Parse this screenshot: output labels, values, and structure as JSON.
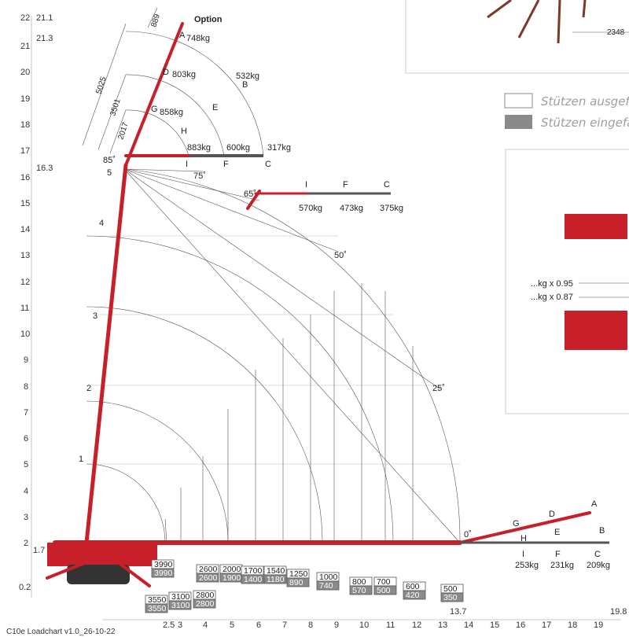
{
  "footer": {
    "caption": "C10e Loadchart v1.0_26-10-22"
  },
  "legend": {
    "extended": "Stützen ausgefa",
    "retracted": "Stützen eingefal"
  },
  "option_label": "Option",
  "y_axis": {
    "ticks": [
      "22",
      "21",
      "20",
      "19",
      "18",
      "17",
      "16",
      "15",
      "14",
      "13",
      "12",
      "11",
      "10",
      "9",
      "8",
      "7",
      "6",
      "5",
      "4",
      "3",
      "2"
    ],
    "extra": [
      "21.1",
      "21.3",
      "16.3",
      "1.7",
      "0.2"
    ]
  },
  "x_axis": {
    "ticks": [
      "2.5",
      "3",
      "4",
      "5",
      "6",
      "7",
      "8",
      "9",
      "10",
      "11",
      "12",
      "13",
      "14",
      "15",
      "16",
      "17",
      "18",
      "19"
    ],
    "extra": [
      "13.7",
      "19.8"
    ]
  },
  "section_marks": [
    "1",
    "2",
    "3",
    "4",
    "5"
  ],
  "angles": [
    "85˚",
    "75˚",
    "65˚",
    "50˚",
    "25˚",
    "0˚"
  ],
  "jib_dims": [
    "889",
    "5025",
    "3501",
    "2017"
  ],
  "top_jib": {
    "letters": [
      "A",
      "D",
      "G",
      "B",
      "E",
      "H",
      "I",
      "F",
      "C"
    ],
    "loads": [
      "748kg",
      "803kg",
      "858kg",
      "532kg",
      "883kg",
      "600kg",
      "317kg"
    ]
  },
  "mid_jib": {
    "letters": [
      "I",
      "F",
      "C"
    ],
    "loads": [
      "570kg",
      "473kg",
      "375kg"
    ]
  },
  "low_jib": {
    "letters": [
      "A",
      "D",
      "G",
      "B",
      "E",
      "H",
      "I",
      "F",
      "C"
    ],
    "loads": [
      "253kg",
      "231kg",
      "209kg"
    ]
  },
  "inset": {
    "dim": "2348",
    "factor1": "...kg x 0.95",
    "factor2": "...kg x 0.87"
  },
  "capacity_boxes": [
    {
      "top": "3990",
      "bottom": "3990"
    },
    {
      "top": "3550",
      "bottom": "3550"
    },
    {
      "top": "3100",
      "bottom": "3100"
    },
    {
      "top": "2800",
      "bottom": "2800"
    },
    {
      "top": "2600",
      "bottom": "2600"
    },
    {
      "top": "2000",
      "bottom": "1900"
    },
    {
      "top": "1700",
      "bottom": "1400"
    },
    {
      "top": "1540",
      "bottom": "1180"
    },
    {
      "top": "1250",
      "bottom": "890"
    },
    {
      "top": "1000",
      "bottom": "740"
    },
    {
      "top": "800",
      "bottom": "570"
    },
    {
      "top": "700",
      "bottom": "500"
    },
    {
      "top": "600",
      "bottom": "420"
    },
    {
      "top": "500",
      "bottom": "350"
    }
  ],
  "colors": {
    "boom": "#c8202b",
    "box_grey": "#8a8a8a",
    "grid": "#555555"
  }
}
